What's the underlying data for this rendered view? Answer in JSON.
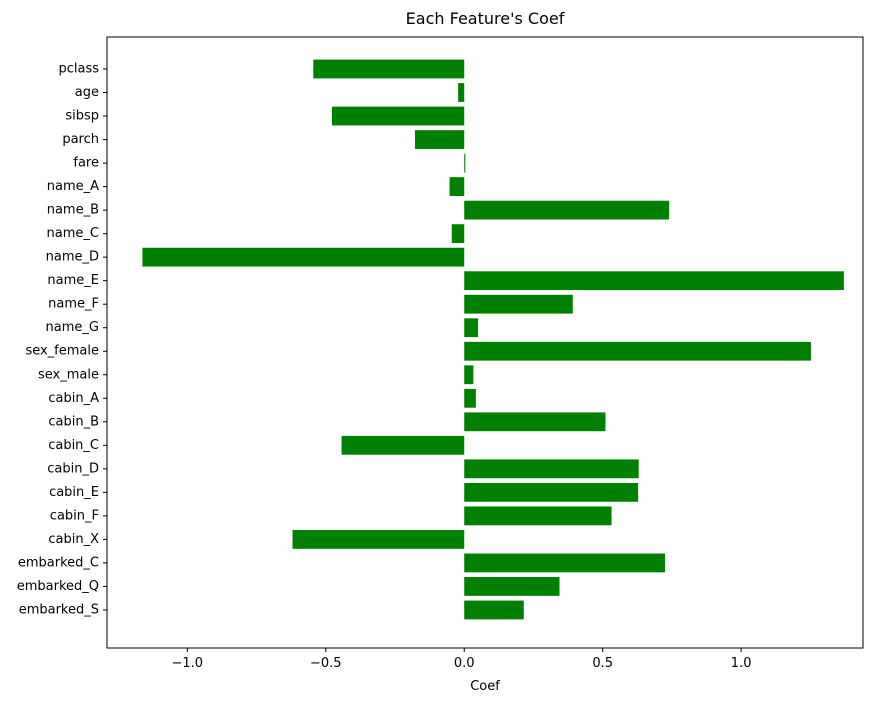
{
  "chart_data": {
    "type": "bar",
    "orientation": "horizontal",
    "title": "Each Feature's Coef",
    "xlabel": "Coef",
    "ylabel": "",
    "xlim": [
      -1.29,
      1.44
    ],
    "xticks": [
      -1.0,
      -0.5,
      0.0,
      0.5,
      1.0
    ],
    "xtick_labels": [
      "−1.0",
      "−0.5",
      "0.0",
      "0.5",
      "1.0"
    ],
    "bar_color": "#008000",
    "grid": false,
    "categories": [
      "pclass",
      "age",
      "sibsp",
      "parch",
      "fare",
      "name_A",
      "name_B",
      "name_C",
      "name_D",
      "name_E",
      "name_F",
      "name_G",
      "sex_female",
      "sex_male",
      "cabin_A",
      "cabin_B",
      "cabin_C",
      "cabin_D",
      "cabin_E",
      "cabin_F",
      "cabin_X",
      "embarked_C",
      "embarked_Q",
      "embarked_S"
    ],
    "values": [
      -0.545,
      -0.022,
      -0.478,
      -0.178,
      0.004,
      -0.053,
      0.74,
      -0.045,
      -1.162,
      1.371,
      0.392,
      0.05,
      1.252,
      0.033,
      0.042,
      0.51,
      -0.443,
      0.63,
      0.628,
      0.532,
      -0.62,
      0.725,
      0.344,
      0.215
    ]
  }
}
